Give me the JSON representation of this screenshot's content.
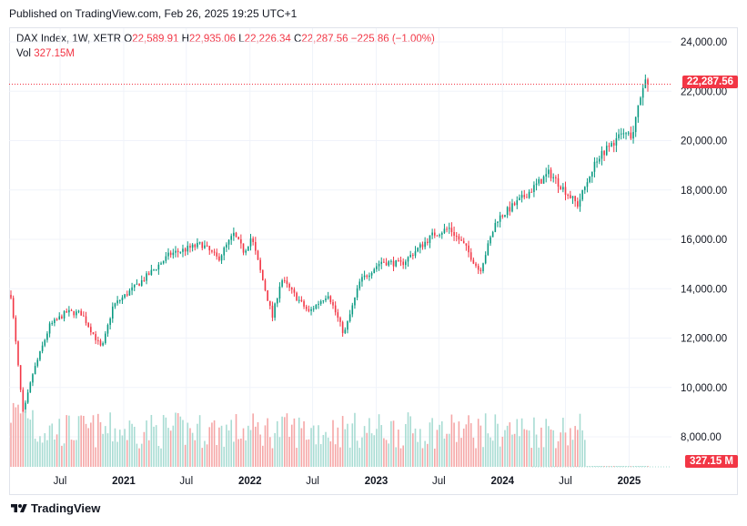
{
  "published": "Published on TradingView.com, Feb 26, 2025 19:25 UTC+1",
  "legend": {
    "symbol": "DAX Index, 1W, XETR",
    "open_label": "O",
    "open": "22,589.91",
    "high_label": "H",
    "high": "22,935.06",
    "low_label": "L",
    "low": "22,226.34",
    "close_label": "C",
    "close": "22,287.56",
    "change": "−225.86 (−1.00%)",
    "vol_label": "Vol",
    "vol": "327.15M"
  },
  "price_tag": "22,287.56",
  "vol_tag": "327.15 M",
  "footer": {
    "brand": "TradingView",
    "logo_icon": "tradingview-logo-icon"
  },
  "colors": {
    "up": "#089981",
    "down": "#f23645",
    "vol_up": "#a8dcd3",
    "vol_down": "#f5a6a6",
    "grid": "#f0f3fa",
    "axis_text": "#131722"
  },
  "chart_data": {
    "type": "candlestick",
    "title": "",
    "y_ticks": [
      "24,000.00",
      "22,000.00",
      "20,000.00",
      "18,000.00",
      "16,000.00",
      "14,000.00",
      "12,000.00",
      "10,000.00",
      "8,000.00"
    ],
    "x_ticks": [
      "Jul",
      "2021",
      "Jul",
      "2022",
      "Jul",
      "2023",
      "Jul",
      "2024",
      "Jul",
      "2025"
    ],
    "ylim": [
      7000,
      24700
    ],
    "last_close": 22287.56,
    "grid": true,
    "weekly_close_approx": [
      {
        "date": "2020-02-10",
        "close": 13750
      },
      {
        "date": "2020-03-16",
        "close": 8900
      },
      {
        "date": "2020-04-13",
        "close": 10550
      },
      {
        "date": "2020-06-01",
        "close": 12500
      },
      {
        "date": "2020-07-20",
        "close": 13050
      },
      {
        "date": "2020-09-01",
        "close": 13000
      },
      {
        "date": "2020-10-30",
        "close": 11550
      },
      {
        "date": "2020-12-01",
        "close": 13300
      },
      {
        "date": "2021-03-01",
        "close": 14400
      },
      {
        "date": "2021-05-15",
        "close": 15400
      },
      {
        "date": "2021-08-15",
        "close": 15800
      },
      {
        "date": "2021-10-01",
        "close": 15200
      },
      {
        "date": "2021-11-15",
        "close": 16200
      },
      {
        "date": "2021-12-15",
        "close": 15500
      },
      {
        "date": "2022-01-05",
        "close": 16100
      },
      {
        "date": "2022-03-07",
        "close": 12850
      },
      {
        "date": "2022-04-01",
        "close": 14400
      },
      {
        "date": "2022-06-20",
        "close": 13050
      },
      {
        "date": "2022-08-15",
        "close": 13800
      },
      {
        "date": "2022-09-30",
        "close": 12150
      },
      {
        "date": "2022-11-15",
        "close": 14300
      },
      {
        "date": "2023-01-15",
        "close": 15100
      },
      {
        "date": "2023-03-15",
        "close": 15000
      },
      {
        "date": "2023-06-15",
        "close": 16200
      },
      {
        "date": "2023-07-31",
        "close": 16450
      },
      {
        "date": "2023-09-15",
        "close": 15700
      },
      {
        "date": "2023-10-27",
        "close": 14700
      },
      {
        "date": "2023-12-15",
        "close": 16800
      },
      {
        "date": "2024-03-01",
        "close": 17700
      },
      {
        "date": "2024-05-15",
        "close": 18700
      },
      {
        "date": "2024-08-05",
        "close": 17400
      },
      {
        "date": "2024-09-30",
        "close": 19300
      },
      {
        "date": "2024-12-15",
        "close": 20300
      },
      {
        "date": "2025-01-10",
        "close": 20200
      },
      {
        "date": "2025-02-14",
        "close": 22500
      },
      {
        "date": "2025-02-24",
        "close": 22287.56
      }
    ]
  }
}
